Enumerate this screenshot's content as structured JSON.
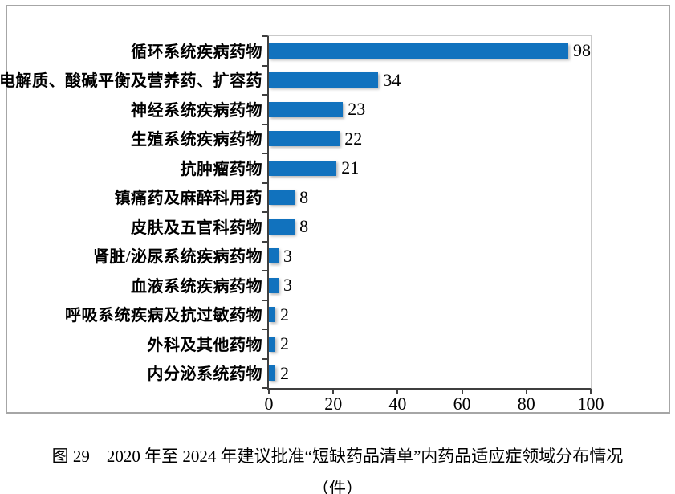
{
  "chart_data": {
    "type": "bar",
    "orientation": "horizontal",
    "categories": [
      "循环系统疾病药物",
      "电解质、酸碱平衡及营养药、扩容药",
      "神经系统疾病药物",
      "生殖系统疾病药物",
      "抗肿瘤药物",
      "镇痛药及麻醉科用药",
      "皮肤及五官科药物",
      "肾脏/泌尿系统疾病药物",
      "血液系统疾病药物",
      "呼吸系统疾病及抗过敏药物",
      "外科及其他药物",
      "内分泌系统药物"
    ],
    "values": [
      98,
      34,
      23,
      22,
      21,
      8,
      8,
      3,
      3,
      2,
      2,
      2
    ],
    "xlim": [
      0,
      100
    ],
    "xticks": [
      0,
      20,
      40,
      60,
      80,
      100
    ],
    "xlabel": "",
    "ylabel": "",
    "grid": false,
    "legend": "none",
    "bar_color": "#1172be",
    "value_labels_shown": true
  },
  "caption": {
    "line1": "图 29　2020 年至 2024 年建议批准“短缺药品清单”内药品适应症领域分布情况",
    "line2": "（件）"
  }
}
